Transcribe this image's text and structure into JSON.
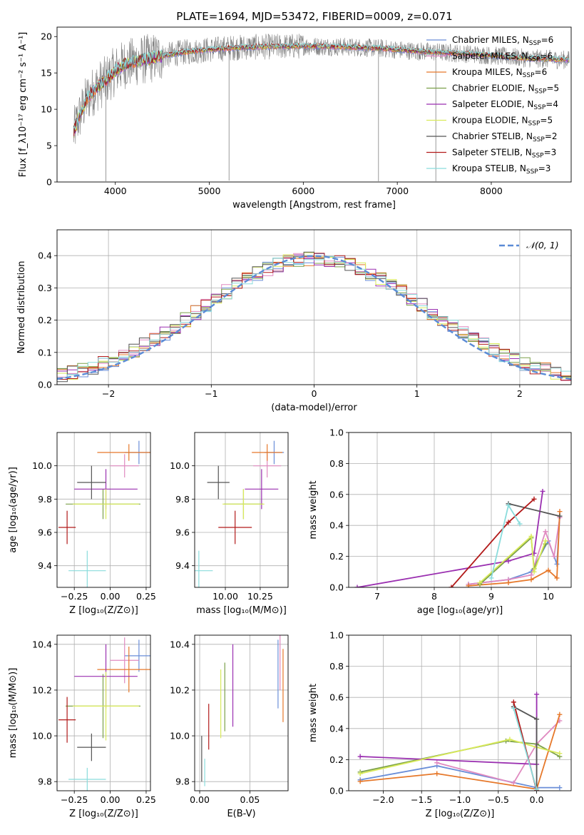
{
  "figure": {
    "title": "PLATE=1694, MJD=53472, FIBERID=0009, z=0.071"
  },
  "colors": {
    "Chabrier MILES": "#6a8ed8",
    "Salpeter MILES": "#e08ac0",
    "Kroupa MILES": "#e6782a",
    "Chabrier ELODIE": "#7ba04a",
    "Salpeter ELODIE": "#9a2fb0",
    "Kroupa ELODIE": "#d9ea5a",
    "Chabrier STELIB": "#555555",
    "Salpeter STELIB": "#b21a1a",
    "Kroupa STELIB": "#8adcdc",
    "data": "#808080",
    "gaussian": "#5b8bd6"
  },
  "chart_data": [
    {
      "id": "spectrum",
      "type": "line",
      "xlabel": "wavelength [Angstrom, rest frame]",
      "ylabel": "Flux [f_λ10^-17 erg cm^-2 s^-1 A^-1]",
      "xlim": [
        3380,
        8850
      ],
      "ylim": [
        0,
        21.3
      ],
      "xticks": [
        4000,
        5000,
        6000,
        7000,
        8000
      ],
      "yticks": [
        0,
        5,
        10,
        15,
        20
      ],
      "legend_position": "top-right",
      "legend": [
        "Chabrier MILES, N_SSP=6",
        "Salpeter MILES, N_SSP=6",
        "Kroupa MILES, N_SSP=6",
        "Chabrier ELODIE, N_SSP=5",
        "Salpeter ELODIE, N_SSP=4",
        "Kroupa ELODIE, N_SSP=5",
        "Chabrier STELIB, N_SSP=2",
        "Salpeter STELIB, N_SSP=3",
        "Kroupa STELIB, N_SSP=3"
      ],
      "continuum": {
        "x": [
          3550,
          3600,
          3700,
          3800,
          3900,
          4000,
          4100,
          4300,
          4500,
          4700,
          5000,
          5300,
          5600,
          6000,
          6400,
          6800,
          7200,
          7500,
          7800,
          8100,
          8400,
          8800
        ],
        "y": [
          6.5,
          8.5,
          11.5,
          13,
          14,
          15.3,
          16.2,
          16.8,
          17.3,
          17.8,
          18.2,
          18.5,
          18.6,
          18.7,
          18.6,
          18.4,
          18.0,
          17.8,
          17.6,
          17.3,
          17.0,
          16.8
        ]
      },
      "spikes": [
        {
          "x": 3900,
          "y": 0.1
        },
        {
          "x": 5210,
          "y": 0.2
        },
        {
          "x": 6800,
          "y": 0.1
        },
        {
          "x": 7410,
          "y": 0.1
        }
      ]
    },
    {
      "id": "residuals",
      "type": "step",
      "xlabel": "(data-model)/error",
      "ylabel": "Normed distribution",
      "xlim": [
        -2.5,
        2.5
      ],
      "ylim": [
        0,
        0.48
      ],
      "xticks": [
        -2,
        -1,
        0,
        1,
        2
      ],
      "yticks": [
        0,
        0.1,
        0.2,
        0.3,
        0.4
      ],
      "legend_position": "top-right",
      "legend": [
        "𝒩(0, 1)"
      ]
    },
    {
      "id": "age_vs_Z",
      "type": "errorbar",
      "xlabel": "Z [log10(Z/Z⊙)]",
      "ylabel": "age [log10(age/yr)]",
      "xlim": [
        -0.37,
        0.28
      ],
      "ylim": [
        9.27,
        10.2
      ],
      "xticks": [
        -0.25,
        0.0,
        0.25
      ],
      "yticks": [
        9.4,
        9.6,
        9.8,
        10.0
      ],
      "points": [
        {
          "model": "Chabrier MILES",
          "x": 0.2,
          "xerr": 0.1,
          "y": 10.08,
          "yerr": 0.07
        },
        {
          "model": "Salpeter MILES",
          "x": 0.1,
          "xerr": 0.1,
          "y": 10.0,
          "yerr": 0.07
        },
        {
          "model": "Kroupa MILES",
          "x": 0.13,
          "xerr": 0.22,
          "y": 10.08,
          "yerr": 0.05
        },
        {
          "model": "Chabrier ELODIE",
          "x": -0.05,
          "xerr": 0.26,
          "y": 9.77,
          "yerr": 0.09
        },
        {
          "model": "Salpeter ELODIE",
          "x": -0.03,
          "xerr": 0.22,
          "y": 9.86,
          "yerr": 0.12
        },
        {
          "model": "Kroupa ELODIE",
          "x": -0.03,
          "xerr": 0.23,
          "y": 9.77,
          "yerr": 0.09
        },
        {
          "model": "Chabrier STELIB",
          "x": -0.13,
          "xerr": 0.1,
          "y": 9.9,
          "yerr": 0.1
        },
        {
          "model": "Salpeter STELIB",
          "x": -0.3,
          "xerr": 0.06,
          "y": 9.63,
          "yerr": 0.1
        },
        {
          "model": "Kroupa STELIB",
          "x": -0.16,
          "xerr": 0.13,
          "y": 9.37,
          "yerr": 0.12
        }
      ]
    },
    {
      "id": "age_vs_mass",
      "type": "errorbar",
      "xlabel": "mass [log10(M/M⊙)]",
      "ylabel": "",
      "xlim": [
        9.78,
        10.45
      ],
      "ylim": [
        9.27,
        10.2
      ],
      "xticks": [
        10.0,
        10.25
      ],
      "yticks": [
        9.4,
        9.6,
        9.8,
        10.0
      ],
      "points": [
        {
          "model": "Chabrier MILES",
          "x": 10.35,
          "xerr": 0.07,
          "y": 10.08,
          "yerr": 0.07
        },
        {
          "model": "Salpeter MILES",
          "x": 10.3,
          "xerr": 0.1,
          "y": 10.0,
          "yerr": 0.07
        },
        {
          "model": "Kroupa MILES",
          "x": 10.3,
          "xerr": 0.11,
          "y": 10.08,
          "yerr": 0.05
        },
        {
          "model": "Chabrier ELODIE",
          "x": 10.13,
          "xerr": 0.14,
          "y": 9.77,
          "yerr": 0.09
        },
        {
          "model": "Salpeter ELODIE",
          "x": 10.26,
          "xerr": 0.12,
          "y": 9.86,
          "yerr": 0.12
        },
        {
          "model": "Kroupa ELODIE",
          "x": 10.13,
          "xerr": 0.15,
          "y": 9.77,
          "yerr": 0.09
        },
        {
          "model": "Chabrier STELIB",
          "x": 9.95,
          "xerr": 0.08,
          "y": 9.9,
          "yerr": 0.1
        },
        {
          "model": "Salpeter STELIB",
          "x": 10.07,
          "xerr": 0.12,
          "y": 9.63,
          "yerr": 0.1
        },
        {
          "model": "Kroupa STELIB",
          "x": 9.81,
          "xerr": 0.1,
          "y": 9.37,
          "yerr": 0.12
        }
      ]
    },
    {
      "id": "weight_vs_age",
      "type": "line",
      "xlabel": "age [log10(age/yr)]",
      "ylabel": "mass weight",
      "xlim": [
        6.5,
        10.4
      ],
      "ylim": [
        0,
        1.0
      ],
      "xticks": [
        7,
        8,
        9,
        10
      ],
      "yticks": [
        0.0,
        0.2,
        0.4,
        0.6,
        0.8,
        1.0
      ],
      "series": [
        {
          "model": "Chabrier MILES",
          "x": [
            8.6,
            9.3,
            9.7,
            10.0,
            10.15,
            10.2
          ],
          "y": [
            0.02,
            0.05,
            0.1,
            0.3,
            0.15,
            0.46
          ]
        },
        {
          "model": "Salpeter MILES",
          "x": [
            8.6,
            9.3,
            9.7,
            9.95,
            10.1,
            10.2
          ],
          "y": [
            0.02,
            0.05,
            0.08,
            0.36,
            0.2,
            0.45
          ]
        },
        {
          "model": "Kroupa MILES",
          "x": [
            8.6,
            9.3,
            9.7,
            10.0,
            10.15,
            10.2
          ],
          "y": [
            0.01,
            0.03,
            0.05,
            0.11,
            0.06,
            0.49
          ]
        },
        {
          "model": "Chabrier ELODIE",
          "x": [
            8.8,
            9.7,
            9.75,
            9.95
          ],
          "y": [
            0.02,
            0.32,
            0.12,
            0.28
          ]
        },
        {
          "model": "Salpeter ELODIE",
          "x": [
            6.65,
            9.3,
            9.75,
            9.9
          ],
          "y": [
            0.0,
            0.17,
            0.22,
            0.62
          ]
        },
        {
          "model": "Kroupa ELODIE",
          "x": [
            8.8,
            9.7,
            9.75,
            9.95
          ],
          "y": [
            0.03,
            0.33,
            0.1,
            0.3
          ]
        },
        {
          "model": "Chabrier STELIB",
          "x": [
            9.3,
            10.2
          ],
          "y": [
            0.54,
            0.46
          ]
        },
        {
          "model": "Salpeter STELIB",
          "x": [
            8.3,
            9.3,
            9.75
          ],
          "y": [
            0.0,
            0.42,
            0.57
          ]
        },
        {
          "model": "Kroupa STELIB",
          "x": [
            9.0,
            9.3,
            9.5
          ],
          "y": [
            0.06,
            0.53,
            0.41
          ]
        }
      ]
    },
    {
      "id": "mass_vs_Z",
      "type": "errorbar",
      "xlabel": "Z [log10(Z/Z⊙)]",
      "ylabel": "mass [log10(M/M⊙)]",
      "xlim": [
        -0.37,
        0.28
      ],
      "ylim": [
        9.76,
        10.44
      ],
      "xticks": [
        -0.25,
        0.0,
        0.25
      ],
      "yticks": [
        9.8,
        10.0,
        10.2,
        10.4
      ],
      "points": [
        {
          "model": "Chabrier MILES",
          "x": 0.2,
          "xerr": 0.1,
          "y": 10.35,
          "yerr": 0.07
        },
        {
          "model": "Salpeter MILES",
          "x": 0.1,
          "xerr": 0.1,
          "y": 10.33,
          "yerr": 0.1
        },
        {
          "model": "Kroupa MILES",
          "x": 0.13,
          "xerr": 0.22,
          "y": 10.29,
          "yerr": 0.1
        },
        {
          "model": "Chabrier ELODIE",
          "x": -0.05,
          "xerr": 0.26,
          "y": 10.13,
          "yerr": 0.14
        },
        {
          "model": "Salpeter ELODIE",
          "x": -0.03,
          "xerr": 0.22,
          "y": 10.26,
          "yerr": 0.14
        },
        {
          "model": "Kroupa ELODIE",
          "x": -0.03,
          "xerr": 0.23,
          "y": 10.13,
          "yerr": 0.15
        },
        {
          "model": "Chabrier STELIB",
          "x": -0.13,
          "xerr": 0.1,
          "y": 9.95,
          "yerr": 0.06
        },
        {
          "model": "Salpeter STELIB",
          "x": -0.3,
          "xerr": 0.06,
          "y": 10.07,
          "yerr": 0.1
        },
        {
          "model": "Kroupa STELIB",
          "x": -0.16,
          "xerr": 0.13,
          "y": 9.81,
          "yerr": 0.05
        }
      ]
    },
    {
      "id": "mass_vs_ebv",
      "type": "errorbar",
      "xlabel": "E(B-V)",
      "ylabel": "",
      "xlim": [
        -0.005,
        0.088
      ],
      "ylim": [
        9.76,
        10.44
      ],
      "xticks": [
        0.0,
        0.05
      ],
      "xticklabels": [
        "0.00",
        "0.05"
      ],
      "yticks": [
        9.8,
        10.0,
        10.2,
        10.4
      ],
      "points": [
        {
          "model": "Chabrier MILES",
          "x": 0.078,
          "y": 10.27,
          "yerr": 0.15
        },
        {
          "model": "Salpeter MILES",
          "x": 0.08,
          "y": 10.32,
          "yerr": 0.12
        },
        {
          "model": "Kroupa MILES",
          "x": 0.083,
          "y": 10.22,
          "yerr": 0.16
        },
        {
          "model": "Chabrier ELODIE",
          "x": 0.025,
          "y": 10.17,
          "yerr": 0.15
        },
        {
          "model": "Salpeter ELODIE",
          "x": 0.033,
          "y": 10.22,
          "yerr": 0.18
        },
        {
          "model": "Kroupa ELODIE",
          "x": 0.021,
          "y": 10.14,
          "yerr": 0.15
        },
        {
          "model": "Chabrier STELIB",
          "x": 0.002,
          "y": 9.9,
          "yerr": 0.1
        },
        {
          "model": "Salpeter STELIB",
          "x": 0.009,
          "y": 10.04,
          "yerr": 0.1
        },
        {
          "model": "Kroupa STELIB",
          "x": 0.005,
          "y": 9.84,
          "yerr": 0.06
        }
      ]
    },
    {
      "id": "weight_vs_Z",
      "type": "line",
      "xlabel": "Z [log10(Z/Z⊙)]",
      "ylabel": "mass weight",
      "xlim": [
        -2.45,
        0.45
      ],
      "ylim": [
        0,
        1.0
      ],
      "xticks": [
        -2.0,
        -1.5,
        -1.0,
        -0.5,
        0.0
      ],
      "yticks": [
        0.0,
        0.2,
        0.4,
        0.6,
        0.8,
        1.0
      ],
      "series": [
        {
          "model": "Chabrier MILES",
          "x": [
            -2.3,
            -1.3,
            0.0,
            0.3
          ],
          "y": [
            0.07,
            0.16,
            0.02,
            0.02
          ]
        },
        {
          "model": "Salpeter MILES",
          "x": [
            -1.3,
            -0.3,
            0.0,
            0.3
          ],
          "y": [
            0.18,
            0.05,
            0.3,
            0.45
          ]
        },
        {
          "model": "Kroupa MILES",
          "x": [
            -2.3,
            -1.3,
            0.0,
            0.3
          ],
          "y": [
            0.06,
            0.11,
            0.01,
            0.49
          ]
        },
        {
          "model": "Chabrier ELODIE",
          "x": [
            -2.3,
            -0.4,
            0.0,
            0.3
          ],
          "y": [
            0.12,
            0.32,
            0.3,
            0.22
          ]
        },
        {
          "model": "Salpeter ELODIE",
          "x": [
            -2.3,
            0.0,
            0.0
          ],
          "y": [
            0.22,
            0.17,
            0.62
          ]
        },
        {
          "model": "Kroupa ELODIE",
          "x": [
            -2.3,
            -0.35,
            0.0,
            0.3
          ],
          "y": [
            0.11,
            0.33,
            0.28,
            0.24
          ]
        },
        {
          "model": "Chabrier STELIB",
          "x": [
            -0.3,
            0.0,
            0.0
          ],
          "y": [
            0.54,
            0.46,
            0.0
          ]
        },
        {
          "model": "Salpeter STELIB",
          "x": [
            -0.3,
            0.0
          ],
          "y": [
            0.57,
            0.0
          ]
        },
        {
          "model": "Kroupa STELIB",
          "x": [
            -0.3,
            0.0
          ],
          "y": [
            0.53,
            0.01
          ]
        }
      ]
    }
  ]
}
